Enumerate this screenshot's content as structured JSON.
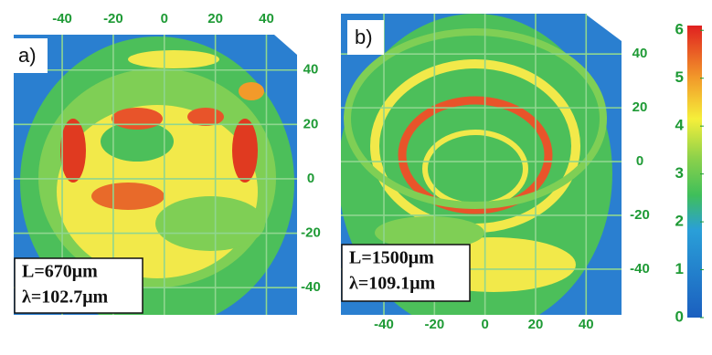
{
  "chart_data": [
    {
      "type": "image",
      "label": "a)",
      "annotations": [
        "L=670μm",
        "λ=102.7μm"
      ],
      "xlim": [
        -59,
        52
      ],
      "ylim": [
        -50,
        53
      ],
      "xticks": [
        -40,
        -20,
        0,
        20,
        40
      ],
      "yticks": [
        40,
        20,
        0,
        -20,
        -40
      ]
    },
    {
      "type": "image",
      "label": "b)",
      "annotations": [
        "L=1500μm",
        "λ=109.1μm"
      ],
      "xlim": [
        -57,
        54
      ],
      "ylim": [
        -57,
        55
      ],
      "xticks": [
        -40,
        -20,
        0,
        20,
        40
      ],
      "yticks": [
        40,
        20,
        0,
        -20,
        -40
      ]
    },
    {
      "type": "colorbar",
      "ylim": [
        0,
        6.1
      ],
      "yticks": [
        0,
        1,
        2,
        3,
        4,
        5,
        6
      ]
    }
  ]
}
